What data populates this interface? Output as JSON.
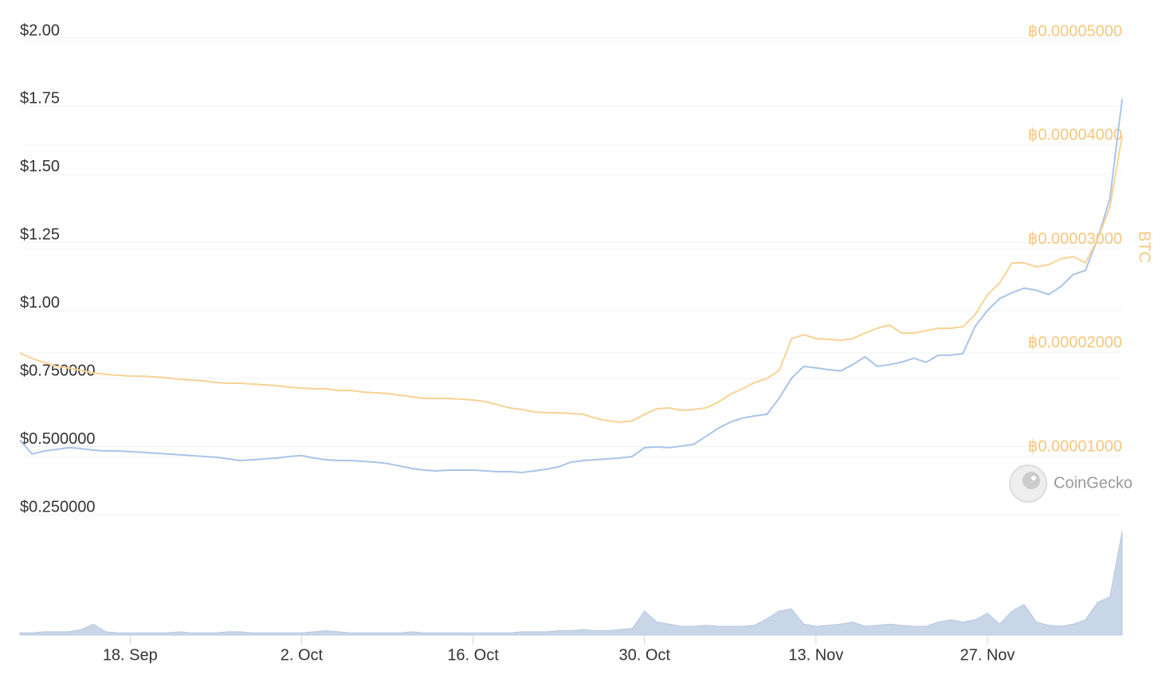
{
  "chart_data": {
    "type": "line",
    "x": [
      "9. Sep",
      "10. Sep",
      "11. Sep",
      "12. Sep",
      "13. Sep",
      "14. Sep",
      "15. Sep",
      "16. Sep",
      "17. Sep",
      "18. Sep",
      "19. Sep",
      "20. Sep",
      "21. Sep",
      "22. Sep",
      "23. Sep",
      "24. Sep",
      "25. Sep",
      "26. Sep",
      "27. Sep",
      "28. Sep",
      "29. Sep",
      "30. Sep",
      "1. Oct",
      "2. Oct",
      "3. Oct",
      "4. Oct",
      "5. Oct",
      "6. Oct",
      "7. Oct",
      "8. Oct",
      "9. Oct",
      "10. Oct",
      "11. Oct",
      "12. Oct",
      "13. Oct",
      "14. Oct",
      "15. Oct",
      "16. Oct",
      "17. Oct",
      "18. Oct",
      "19. Oct",
      "20. Oct",
      "21. Oct",
      "22. Oct",
      "23. Oct",
      "24. Oct",
      "25. Oct",
      "26. Oct",
      "27. Oct",
      "28. Oct",
      "29. Oct",
      "30. Oct",
      "31. Oct",
      "1. Nov",
      "2. Nov",
      "3. Nov",
      "4. Nov",
      "5. Nov",
      "6. Nov",
      "7. Nov",
      "8. Nov",
      "9. Nov",
      "10. Nov",
      "11. Nov",
      "12. Nov",
      "13. Nov",
      "14. Nov",
      "15. Nov",
      "16. Nov",
      "17. Nov",
      "18. Nov",
      "19. Nov",
      "20. Nov",
      "21. Nov",
      "22. Nov",
      "23. Nov",
      "24. Nov",
      "25. Nov",
      "26. Nov",
      "27. Nov",
      "28. Nov",
      "29. Nov",
      "30. Nov",
      "1. Dec",
      "2. Dec",
      "3. Dec",
      "4. Dec",
      "5. Dec",
      "6. Dec",
      "7. Dec",
      "8. Dec"
    ],
    "xticks": [
      "18. Sep",
      "2. Oct",
      "16. Oct",
      "30. Oct",
      "13. Nov",
      "27. Nov"
    ],
    "series": [
      {
        "color": "#a9c4e8",
        "axis": "y",
        "values": [
          0.523,
          0.473,
          0.484,
          0.49,
          0.496,
          0.493,
          0.487,
          0.484,
          0.484,
          0.482,
          0.479,
          0.476,
          0.473,
          0.47,
          0.467,
          0.464,
          0.461,
          0.455,
          0.449,
          0.452,
          0.455,
          0.458,
          0.464,
          0.467,
          0.458,
          0.452,
          0.449,
          0.449,
          0.446,
          0.443,
          0.438,
          0.429,
          0.42,
          0.414,
          0.411,
          0.414,
          0.414,
          0.414,
          0.411,
          0.408,
          0.408,
          0.405,
          0.411,
          0.417,
          0.426,
          0.443,
          0.449,
          0.452,
          0.455,
          0.458,
          0.464,
          0.496,
          0.499,
          0.496,
          0.502,
          0.508,
          0.537,
          0.567,
          0.59,
          0.605,
          0.613,
          0.619,
          0.678,
          0.751,
          0.795,
          0.789,
          0.783,
          0.778,
          0.801,
          0.83,
          0.795,
          0.801,
          0.81,
          0.825,
          0.81,
          0.836,
          0.836,
          0.842,
          0.942,
          1.0,
          1.044,
          1.065,
          1.082,
          1.074,
          1.059,
          1.088,
          1.132,
          1.147,
          1.264,
          1.411,
          1.777
        ]
      },
      {
        "color": "#f8d295",
        "axis": "y2",
        "values": [
          1.998e-05,
          1.944e-05,
          1.906e-05,
          1.868e-05,
          1.852e-05,
          1.829e-05,
          1.806e-05,
          1.791e-05,
          1.783e-05,
          1.775e-05,
          1.775e-05,
          1.768e-05,
          1.76e-05,
          1.745e-05,
          1.737e-05,
          1.729e-05,
          1.714e-05,
          1.706e-05,
          1.706e-05,
          1.699e-05,
          1.691e-05,
          1.683e-05,
          1.668e-05,
          1.66e-05,
          1.653e-05,
          1.653e-05,
          1.637e-05,
          1.637e-05,
          1.622e-05,
          1.614e-05,
          1.607e-05,
          1.591e-05,
          1.576e-05,
          1.56e-05,
          1.56e-05,
          1.56e-05,
          1.553e-05,
          1.545e-05,
          1.53e-05,
          1.499e-05,
          1.468e-05,
          1.453e-05,
          1.43e-05,
          1.422e-05,
          1.422e-05,
          1.415e-05,
          1.407e-05,
          1.369e-05,
          1.345e-05,
          1.33e-05,
          1.345e-05,
          1.407e-05,
          1.461e-05,
          1.468e-05,
          1.445e-05,
          1.453e-05,
          1.468e-05,
          1.522e-05,
          1.599e-05,
          1.653e-05,
          1.714e-05,
          1.752e-05,
          1.829e-05,
          2.136e-05,
          2.175e-05,
          2.136e-05,
          2.129e-05,
          2.121e-05,
          2.136e-05,
          2.19e-05,
          2.236e-05,
          2.267e-05,
          2.19e-05,
          2.19e-05,
          2.213e-05,
          2.236e-05,
          2.236e-05,
          2.251e-05,
          2.367e-05,
          2.559e-05,
          2.674e-05,
          2.866e-05,
          2.866e-05,
          2.827e-05,
          2.85e-05,
          2.904e-05,
          2.927e-05,
          2.866e-05,
          3.096e-05,
          3.403e-05,
          4.094e-05
        ]
      },
      {
        "color": "#c9d6e8",
        "axis": "y3",
        "type": "area",
        "values": [
          2,
          2,
          3,
          3,
          3,
          5,
          10,
          3,
          2,
          2,
          2,
          2,
          2,
          3,
          2,
          2,
          2,
          3,
          3,
          2,
          2,
          2,
          2,
          2,
          3,
          4,
          3,
          2,
          2,
          2,
          2,
          2,
          3,
          2,
          2,
          2,
          2,
          2,
          2,
          2,
          2,
          3,
          3,
          3,
          4,
          4,
          5,
          4,
          4,
          5,
          6,
          22,
          12,
          10,
          8,
          8,
          9,
          8,
          8,
          8,
          9,
          15,
          22,
          24,
          10,
          8,
          9,
          10,
          12,
          8,
          9,
          10,
          9,
          8,
          8,
          12,
          14,
          12,
          14,
          20,
          10,
          22,
          28,
          12,
          9,
          8,
          10,
          14,
          30,
          35,
          95
        ]
      }
    ],
    "ylim": [
      0.25,
      2
    ],
    "yticks": [
      {
        "value": 0.25,
        "label": "$0.250000"
      },
      {
        "value": 0.5,
        "label": "$0.500000"
      },
      {
        "value": 0.75,
        "label": "$0.750000"
      },
      {
        "value": 1,
        "label": "$1.00"
      },
      {
        "value": 1.25,
        "label": "$1.25"
      },
      {
        "value": 1.5,
        "label": "$1.50"
      },
      {
        "value": 1.75,
        "label": "$1.75"
      },
      {
        "value": 2,
        "label": "$2.00"
      }
    ],
    "y2lim": [
      1e-05,
      5e-05
    ],
    "y2ticks": [
      {
        "value": 1e-05,
        "label": "฿0.00001000"
      },
      {
        "value": 2e-05,
        "label": "฿0.00002000"
      },
      {
        "value": 3e-05,
        "label": "฿0.00003000"
      },
      {
        "value": 4e-05,
        "label": "฿0.00004000"
      },
      {
        "value": 5e-05,
        "label": "฿0.00005000"
      }
    ],
    "y2label": "BTC",
    "y3lim": [
      0,
      100
    ],
    "grid": true,
    "watermark": "CoinGecko"
  }
}
